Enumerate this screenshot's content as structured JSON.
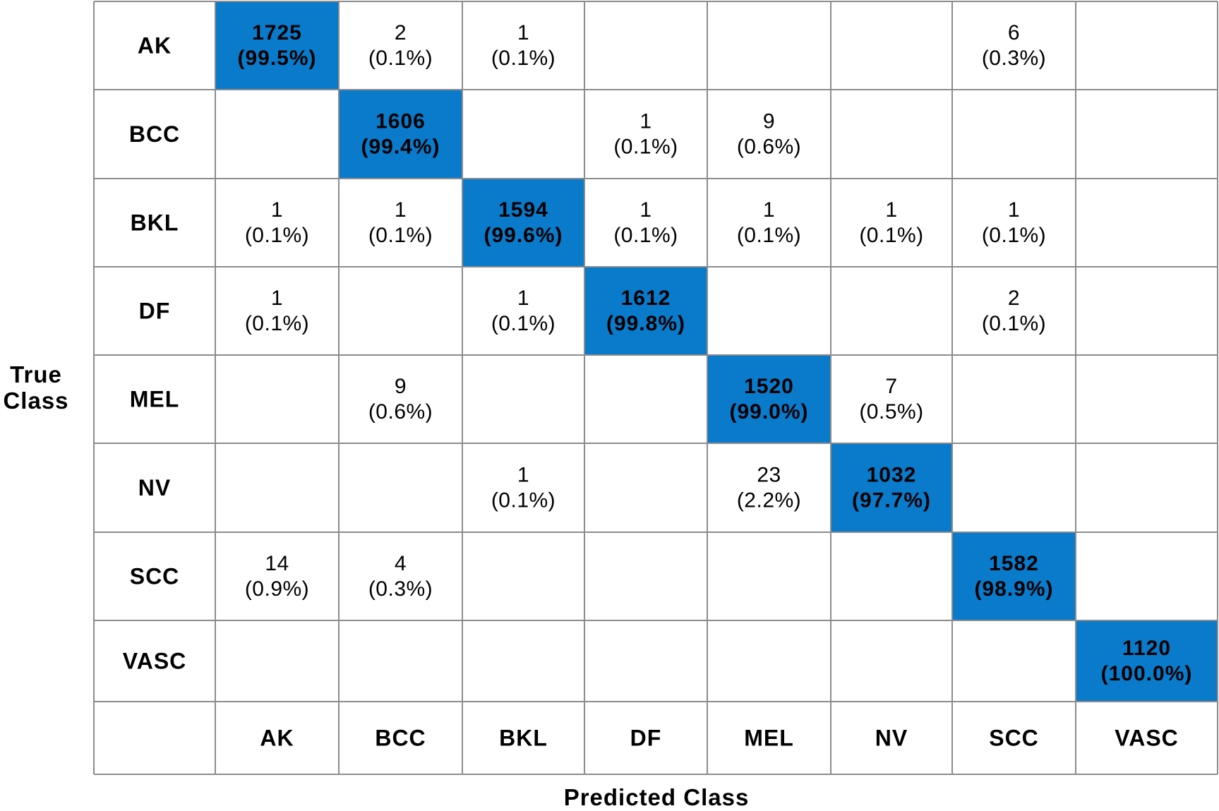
{
  "chart_data": {
    "type": "heatmap",
    "title": "",
    "xlabel": "Predicted Class",
    "ylabel_lines": [
      "True",
      "Class"
    ],
    "categories": [
      "AK",
      "BCC",
      "BKL",
      "DF",
      "MEL",
      "NV",
      "SCC",
      "VASC"
    ],
    "cells": [
      [
        {
          "v": "1725",
          "p": "(99.5%)"
        },
        {
          "v": "2",
          "p": "(0.1%)"
        },
        {
          "v": "1",
          "p": "(0.1%)"
        },
        null,
        null,
        null,
        {
          "v": "6",
          "p": "(0.3%)"
        },
        null
      ],
      [
        null,
        {
          "v": "1606",
          "p": "(99.4%)"
        },
        null,
        {
          "v": "1",
          "p": "(0.1%)"
        },
        {
          "v": "9",
          "p": "(0.6%)"
        },
        null,
        null,
        null
      ],
      [
        {
          "v": "1",
          "p": "(0.1%)"
        },
        {
          "v": "1",
          "p": "(0.1%)"
        },
        {
          "v": "1594",
          "p": "(99.6%)"
        },
        {
          "v": "1",
          "p": "(0.1%)"
        },
        {
          "v": "1",
          "p": "(0.1%)"
        },
        {
          "v": "1",
          "p": "(0.1%)"
        },
        {
          "v": "1",
          "p": "(0.1%)"
        },
        null
      ],
      [
        {
          "v": "1",
          "p": "(0.1%)"
        },
        null,
        {
          "v": "1",
          "p": "(0.1%)"
        },
        {
          "v": "1612",
          "p": "(99.8%)"
        },
        null,
        null,
        {
          "v": "2",
          "p": "(0.1%)"
        },
        null
      ],
      [
        null,
        {
          "v": "9",
          "p": "(0.6%)"
        },
        null,
        null,
        {
          "v": "1520",
          "p": "(99.0%)"
        },
        {
          "v": "7",
          "p": "(0.5%)"
        },
        null,
        null
      ],
      [
        null,
        null,
        {
          "v": "1",
          "p": "(0.1%)"
        },
        null,
        {
          "v": "23",
          "p": "(2.2%)"
        },
        {
          "v": "1032",
          "p": "(97.7%)"
        },
        null,
        null
      ],
      [
        {
          "v": "14",
          "p": "(0.9%)"
        },
        {
          "v": "4",
          "p": "(0.3%)"
        },
        null,
        null,
        null,
        null,
        {
          "v": "1582",
          "p": "(98.9%)"
        },
        null
      ],
      [
        null,
        null,
        null,
        null,
        null,
        null,
        null,
        {
          "v": "1120",
          "p": "(100.0%)"
        }
      ]
    ],
    "colors": {
      "diagonal": "#0a7acb",
      "grid": "#8c8c8c",
      "background": "#ffffff",
      "text": "#000000"
    }
  }
}
